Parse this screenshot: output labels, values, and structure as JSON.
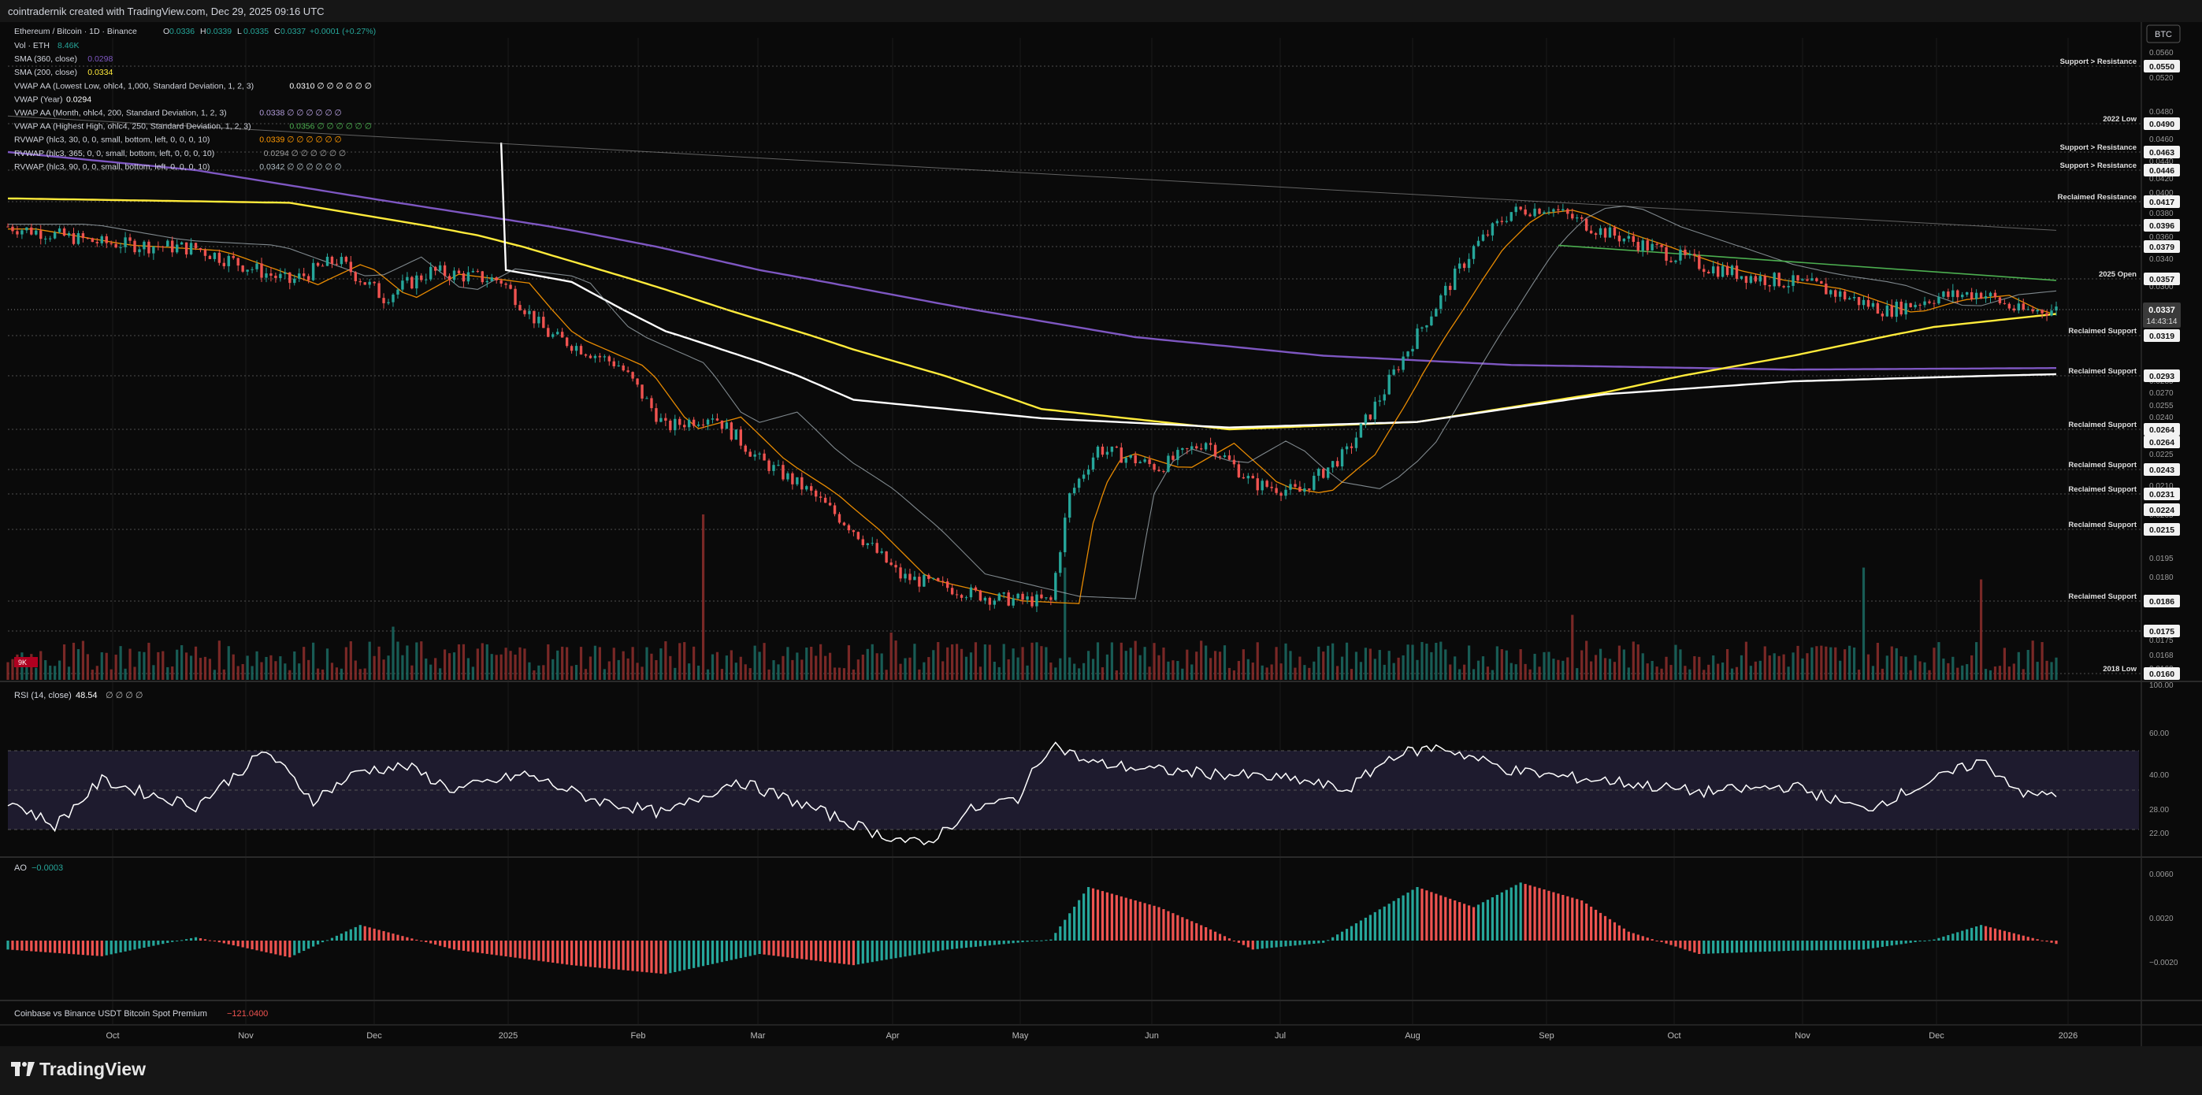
{
  "header": {
    "credit": "cointradernik created with TradingView.com, Dec 29, 2025 09:16 UTC",
    "currency_button": "BTC"
  },
  "footer": {
    "logo_text": "TradingView"
  },
  "legend": {
    "symbol": "Ethereum / Bitcoin · 1D · Binance",
    "ohlc": [
      {
        "k": "O",
        "v": "0.0336"
      },
      {
        "k": "H",
        "v": "0.0339"
      },
      {
        "k": "L",
        "v": "0.0335"
      },
      {
        "k": "C",
        "v": "0.0337"
      }
    ],
    "change": "+0.0001 (+0.27%)",
    "indicators": [
      {
        "label": "Vol · ETH",
        "value": "8.46K",
        "color": "#26a69a"
      },
      {
        "label": "SMA (360, close)",
        "value": "0.0298",
        "color": "#7e57c2"
      },
      {
        "label": "SMA (200, close)",
        "value": "0.0334",
        "color": "#ffeb3b"
      },
      {
        "label": "VWAP AA (Lowest Low, ohlc4, 1,000, Standard Deviation, 1, 2, 3)",
        "value": "0.0310  ∅  ∅  ∅  ∅  ∅  ∅",
        "color": "#ffffff"
      },
      {
        "label": "VWAP (Year)",
        "value": "0.0294",
        "color": "#ffffff"
      },
      {
        "label": "VWAP AA (Month, ohlc4, 200, Standard Deviation, 1, 2, 3)",
        "value": "0.0338  ∅  ∅  ∅  ∅  ∅  ∅",
        "color": "#b39ddb"
      },
      {
        "label": "VWAP AA (Highest High, ohlc4, 250, Standard Deviation, 1, 2, 3)",
        "value": "0.0356  ∅  ∅  ∅  ∅  ∅  ∅",
        "color": "#4caf50"
      },
      {
        "label": "RVWAP (hlc3, 30, 0, 0, small, bottom, left, 0, 0, 0, 10)",
        "value": "0.0339  ∅  ∅  ∅  ∅  ∅  ∅",
        "color": "#ff9800"
      },
      {
        "label": "RVWAP (hlc3, 365, 0, 0, small, bottom, left, 0, 0, 0, 10)",
        "value": "0.0294  ∅  ∅  ∅  ∅  ∅  ∅",
        "color": "#9e9e9e"
      },
      {
        "label": "RVWAP (hlc3, 90, 0, 0, small, bottom, left, 0, 0, 0, 10)",
        "value": "0.0342  ∅  ∅  ∅  ∅  ∅  ∅",
        "color": "#b0bec5"
      }
    ],
    "vol_tag": "9K"
  },
  "colors": {
    "up": "#26a69a",
    "down": "#ef5350",
    "sma200": "#ffeb3b",
    "sma360": "#7e57c2",
    "vwap_white": "#ffffff",
    "rvwap30": "#ff9800",
    "rvwap365": "#9e9e9e",
    "rvwap90": "#b0bec5",
    "vwap_high": "#4caf50",
    "rsi_band": "#1e1b2e"
  },
  "chart_data": [
    {
      "type": "candlestick",
      "title": "Ethereum / Bitcoin · 1D · Binance",
      "x_ticks": [
        "Oct",
        "Nov",
        "Dec",
        "2025",
        "Feb",
        "Mar",
        "Apr",
        "May",
        "Jun",
        "Jul",
        "Aug",
        "Sep",
        "Oct",
        "Nov",
        "Dec",
        "2026"
      ],
      "y_ticks": [
        "0.0560",
        "0.0520",
        "0.0480",
        "0.0460",
        "0.0440",
        "0.0420",
        "0.0400",
        "0.0380",
        "0.0360",
        "0.0340",
        "0.0300",
        "0.0285",
        "0.0270",
        "0.0255",
        "0.0240",
        "0.0225",
        "0.0210",
        "0.0205",
        "0.0195",
        "0.0180",
        "0.0175",
        "0.0168",
        "0.0160"
      ],
      "price_labels": [
        "0.0550",
        "0.0490",
        "0.0463",
        "0.0446",
        "0.0417",
        "0.0396",
        "0.0379",
        "0.0357",
        "0.0337",
        "0.0319",
        "0.0293",
        "0.0264",
        "0.0264",
        "0.0243",
        "0.0231",
        "0.0224",
        "0.0215",
        "0.0186",
        "0.0175",
        "0.0160"
      ],
      "current_price": "0.0337",
      "countdown": "14:43:14",
      "levels": [
        {
          "price": 0.055,
          "label": "Support > Resistance"
        },
        {
          "price": 0.049,
          "label": "2022 Low"
        },
        {
          "price": 0.0463,
          "label": "Support > Resistance"
        },
        {
          "price": 0.0446,
          "label": "Support > Resistance"
        },
        {
          "price": 0.0417,
          "label": "Reclaimed Resistance"
        },
        {
          "price": 0.0396,
          "label": ""
        },
        {
          "price": 0.0379,
          "label": ""
        },
        {
          "price": 0.0357,
          "label": "2025 Open"
        },
        {
          "price": 0.0319,
          "label": "Reclaimed Support"
        },
        {
          "price": 0.0293,
          "label": "Reclaimed Support"
        },
        {
          "price": 0.0264,
          "label": "Reclaimed Support"
        },
        {
          "price": 0.0243,
          "label": "Reclaimed Support"
        },
        {
          "price": 0.0231,
          "label": "Reclaimed Support"
        },
        {
          "price": 0.0215,
          "label": "Reclaimed Support"
        },
        {
          "price": 0.0186,
          "label": "Reclaimed Support"
        },
        {
          "price": 0.0175,
          "label": ""
        },
        {
          "price": 0.016,
          "label": "2018 Low"
        }
      ],
      "price_path": [
        [
          0,
          0.0395
        ],
        [
          20,
          0.0382
        ],
        [
          40,
          0.0378
        ],
        [
          60,
          0.0355
        ],
        [
          70,
          0.037
        ],
        [
          80,
          0.0345
        ],
        [
          90,
          0.0362
        ],
        [
          105,
          0.0356
        ],
        [
          115,
          0.032
        ],
        [
          130,
          0.03
        ],
        [
          140,
          0.0265
        ],
        [
          150,
          0.0272
        ],
        [
          160,
          0.0248
        ],
        [
          170,
          0.0233
        ],
        [
          180,
          0.0215
        ],
        [
          190,
          0.0196
        ],
        [
          210,
          0.0187
        ],
        [
          222,
          0.0186
        ],
        [
          226,
          0.023
        ],
        [
          232,
          0.0254
        ],
        [
          245,
          0.0244
        ],
        [
          255,
          0.0258
        ],
        [
          265,
          0.0236
        ],
        [
          275,
          0.0232
        ],
        [
          285,
          0.0252
        ],
        [
          293,
          0.0285
        ],
        [
          302,
          0.033
        ],
        [
          312,
          0.0378
        ],
        [
          320,
          0.0408
        ],
        [
          328,
          0.0412
        ],
        [
          338,
          0.0393
        ],
        [
          350,
          0.0378
        ],
        [
          362,
          0.0365
        ],
        [
          372,
          0.0358
        ],
        [
          385,
          0.0352
        ],
        [
          400,
          0.0336
        ],
        [
          410,
          0.0345
        ],
        [
          420,
          0.0348
        ],
        [
          428,
          0.0336
        ],
        [
          436,
          0.0337
        ]
      ],
      "sma200_path": [
        [
          0,
          0.042
        ],
        [
          60,
          0.0416
        ],
        [
          100,
          0.0388
        ],
        [
          140,
          0.035
        ],
        [
          180,
          0.031
        ],
        [
          220,
          0.0275
        ],
        [
          260,
          0.0264
        ],
        [
          300,
          0.0268
        ],
        [
          340,
          0.0284
        ],
        [
          380,
          0.0306
        ],
        [
          410,
          0.0325
        ],
        [
          436,
          0.0334
        ]
      ],
      "sma360_path": [
        [
          0,
          0.0463
        ],
        [
          40,
          0.0446
        ],
        [
          80,
          0.0418
        ],
        [
          120,
          0.0392
        ],
        [
          160,
          0.0363
        ],
        [
          200,
          0.034
        ],
        [
          240,
          0.0318
        ],
        [
          280,
          0.0306
        ],
        [
          320,
          0.03
        ],
        [
          380,
          0.0297
        ],
        [
          436,
          0.0298
        ]
      ],
      "vwap_path": [
        [
          105,
          0.0472
        ],
        [
          106,
          0.0363
        ],
        [
          120,
          0.0355
        ],
        [
          140,
          0.0322
        ],
        [
          160,
          0.0302
        ],
        [
          180,
          0.028
        ],
        [
          220,
          0.027
        ],
        [
          260,
          0.0265
        ],
        [
          300,
          0.0268
        ],
        [
          340,
          0.0283
        ],
        [
          380,
          0.029
        ],
        [
          436,
          0.0294
        ]
      ]
    },
    {
      "type": "line",
      "title": "RSI (14, close)",
      "value": "48.54",
      "y_ticks": [
        "100.00",
        "60.00",
        "40.00",
        "28.00",
        "22.00"
      ],
      "bands": [
        30,
        70
      ],
      "path": [
        [
          0,
          45
        ],
        [
          10,
          32
        ],
        [
          20,
          55
        ],
        [
          30,
          48
        ],
        [
          40,
          42
        ],
        [
          55,
          70
        ],
        [
          65,
          45
        ],
        [
          75,
          60
        ],
        [
          85,
          62
        ],
        [
          95,
          50
        ],
        [
          110,
          58
        ],
        [
          125,
          45
        ],
        [
          140,
          38
        ],
        [
          155,
          55
        ],
        [
          170,
          42
        ],
        [
          185,
          28
        ],
        [
          195,
          22
        ],
        [
          205,
          40
        ],
        [
          215,
          46
        ],
        [
          222,
          74
        ],
        [
          230,
          64
        ],
        [
          245,
          60
        ],
        [
          260,
          58
        ],
        [
          275,
          55
        ],
        [
          285,
          50
        ],
        [
          295,
          68
        ],
        [
          305,
          72
        ],
        [
          320,
          60
        ],
        [
          330,
          57
        ],
        [
          340,
          55
        ],
        [
          360,
          49
        ],
        [
          380,
          52
        ],
        [
          395,
          40
        ],
        [
          410,
          55
        ],
        [
          420,
          65
        ],
        [
          430,
          47
        ],
        [
          436,
          48.54
        ]
      ]
    },
    {
      "type": "bar",
      "title": "AO",
      "value": "−0.0003",
      "y_ticks": [
        "0.0060",
        "0.0020",
        "−0.0020"
      ],
      "path": [
        [
          0,
          -0.0008
        ],
        [
          20,
          -0.0014
        ],
        [
          40,
          0.0003
        ],
        [
          60,
          -0.0015
        ],
        [
          75,
          0.0014
        ],
        [
          95,
          -0.0008
        ],
        [
          120,
          -0.0022
        ],
        [
          140,
          -0.003
        ],
        [
          160,
          -0.0012
        ],
        [
          180,
          -0.0022
        ],
        [
          200,
          -0.0008
        ],
        [
          222,
          0.0001
        ],
        [
          230,
          0.0048
        ],
        [
          245,
          0.003
        ],
        [
          255,
          0.0012
        ],
        [
          265,
          -0.0008
        ],
        [
          280,
          -0.0002
        ],
        [
          300,
          0.0048
        ],
        [
          312,
          0.003
        ],
        [
          322,
          0.0052
        ],
        [
          335,
          0.0036
        ],
        [
          345,
          0.0008
        ],
        [
          360,
          -0.0012
        ],
        [
          380,
          -0.0009
        ],
        [
          395,
          -0.0008
        ],
        [
          410,
          0.0001
        ],
        [
          420,
          0.0014
        ],
        [
          436,
          -0.0003
        ]
      ]
    },
    {
      "type": "table",
      "title": "Coinbase vs Binance USDT Bitcoin Spot Premium",
      "value": "−121.0400"
    }
  ]
}
